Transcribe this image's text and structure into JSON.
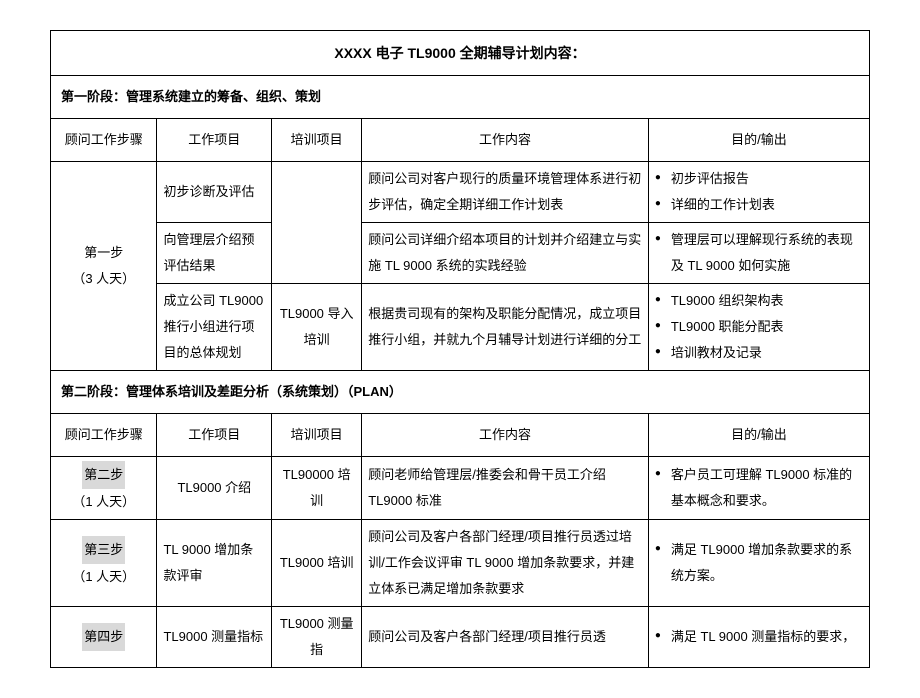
{
  "title": "XXXX 电子 TL9000 全期辅导计划内容：",
  "phase1": {
    "label": "第一阶段：管理系统建立的筹备、组织、策划"
  },
  "phase2": {
    "label": "第二阶段：管理体系培训及差距分析（系统策划）（PLAN）"
  },
  "headers": {
    "step": "顾问工作步骤",
    "project": "工作项目",
    "training": "培训项目",
    "content": "工作内容",
    "output": "目的/输出"
  },
  "step1": {
    "label": "第一步",
    "days": "（3 人天）",
    "row1": {
      "project": "初步诊断及评估",
      "content": "顾问公司对客户现行的质量环境管理体系进行初步评估，确定全期详细工作计划表",
      "out1": "初步评估报告",
      "out2": "详细的工作计划表"
    },
    "row2": {
      "project": "向管理层介绍预评估结果",
      "content": "顾问公司详细介绍本项目的计划并介绍建立与实施 TL 9000 系统的实践经验",
      "out1": "管理层可以理解现行系统的表现及 TL 9000 如何实施"
    },
    "row3": {
      "project": "成立公司 TL9000 推行小组进行项目的总体规划",
      "training": "TL9000 导入培训",
      "content": "根据贵司现有的架构及职能分配情况，成立项目推行小组，并就九个月辅导计划进行详细的分工",
      "out1": "TL9000 组织架构表",
      "out2": "TL9000 职能分配表",
      "out3": "培训教材及记录"
    }
  },
  "step2": {
    "label": "第二步",
    "days": "（1 人天）",
    "project": "TL9000 介绍",
    "training": "TL90000 培训",
    "content": "顾问老师给管理层/推委会和骨干员工介绍 TL9000 标准",
    "out1": "客户员工可理解 TL9000 标准的基本概念和要求。"
  },
  "step3": {
    "label": "第三步",
    "days": "（1 人天）",
    "project": "TL 9000 增加条款评审",
    "training": "TL9000 培训",
    "content": "顾问公司及客户各部门经理/项目推行员透过培训/工作会议评审 TL 9000 增加条款要求，并建立体系已满足增加条款要求",
    "out1": "满足 TL9000 增加条款要求的系统方案。"
  },
  "step4": {
    "label": "第四步",
    "project": "TL9000 测量指标",
    "training": "TL9000 测量指",
    "content": "顾问公司及客户各部门经理/项目推行员透",
    "out1": "满足 TL 9000 测量指标的要求，"
  }
}
